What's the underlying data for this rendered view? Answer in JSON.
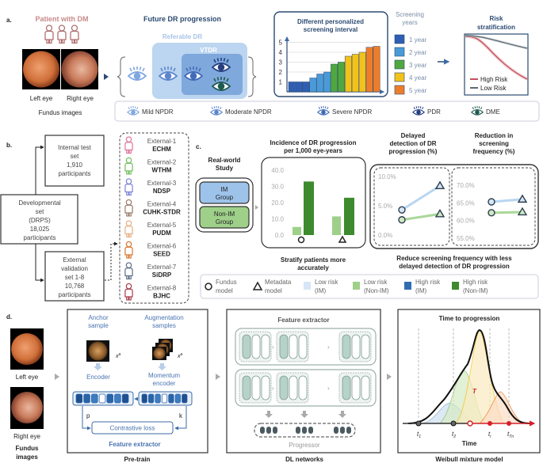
{
  "panel_a": {
    "label": "a.",
    "patient_title": "Patient with DM",
    "left_eye": "Left eye",
    "right_eye": "Right eye",
    "fundus_caption": "Fundus images",
    "progression_title": "Future DR progression",
    "referable_label": "Referable DR",
    "vtdr_label": "VTDR",
    "interval_title": [
      "Different personalized",
      "screening interval"
    ],
    "y_ticks": [
      "1",
      "2",
      "3",
      "4",
      "5"
    ],
    "screening_years_title": [
      "Screening",
      "years"
    ],
    "years": [
      {
        "label": "1 year",
        "color": "#2f5fb3"
      },
      {
        "label": "2 year",
        "color": "#4a9ad8"
      },
      {
        "label": "3 year",
        "color": "#4fa83d"
      },
      {
        "label": "4 year",
        "color": "#f2c21b"
      },
      {
        "label": "5 year",
        "color": "#ee7d2a"
      }
    ],
    "risk_title": [
      "Risk",
      "stratification"
    ],
    "risk_legend": [
      {
        "label": "High Risk",
        "color": "#c4505c"
      },
      {
        "label": "Low Risk",
        "color": "#5d6a72"
      }
    ],
    "stages": [
      {
        "label": "Mild NPDR",
        "color": "#7fa7e0",
        "icon": "eye-icon"
      },
      {
        "label": "Moderate NPDR",
        "color": "#5b86cc",
        "icon": "eye-icon"
      },
      {
        "label": "Severe NPDR",
        "color": "#3f6bb8",
        "icon": "eye-icon"
      },
      {
        "label": "PDR",
        "color": "#263f80",
        "icon": "eye-icon"
      },
      {
        "label": "DME",
        "color": "#1f5a50",
        "icon": "eye-icon"
      }
    ]
  },
  "panel_b": {
    "label": "b.",
    "internal": [
      "Internal test",
      "set",
      "1,910",
      "participants"
    ],
    "developmental": [
      "Developmental",
      "set",
      "(DRPS)",
      "18,025",
      "participants"
    ],
    "external": [
      "External",
      "validation",
      "set 1-8",
      "10,768",
      "participants"
    ],
    "sites": [
      {
        "name": "External-1",
        "code": "ECHM",
        "color": "#e0709a"
      },
      {
        "name": "External-2",
        "code": "WTHM",
        "color": "#6cbf5a"
      },
      {
        "name": "External-3",
        "code": "NDSP",
        "color": "#7b82d6"
      },
      {
        "name": "External-4",
        "code": "CUHK-STDR",
        "color": "#9a7a66"
      },
      {
        "name": "External-5",
        "code": "PUDM",
        "color": "#e9ad7e"
      },
      {
        "name": "External-6",
        "code": "SEED",
        "color": "#d9742c"
      },
      {
        "name": "External-7",
        "code": "SiDRP",
        "color": "#5b6d86"
      },
      {
        "name": "External-8",
        "code": "BJHC",
        "color": "#a83a48"
      }
    ]
  },
  "panel_c": {
    "label": "c.",
    "real_world_title": [
      "Real-world",
      "Study"
    ],
    "im_group": [
      "IM",
      "Group"
    ],
    "non_im_group": [
      "Non-IM",
      "Group"
    ],
    "incidence_title": [
      "Incidence of DR progression",
      "per 1,000 eye-years"
    ],
    "incidence_ticks": [
      "40.0",
      "30.0",
      "20.0",
      "10.0",
      "0.0"
    ],
    "delayed_title": [
      "Delayed",
      "detection of DR",
      "progression (%)"
    ],
    "delayed_ticks": [
      "10.0%",
      "5.0%",
      "0.0%"
    ],
    "reduction_title": [
      "Reduction in",
      "screening",
      "frequency (%)"
    ],
    "reduction_ticks": [
      "70.0%",
      "65.0%",
      "60.0%",
      "55.0%"
    ],
    "stratify_caption": [
      "Stratify patients more",
      "accurately"
    ],
    "reduce_caption": [
      "Reduce screening frequency with less",
      "delayed detection of DR progression"
    ],
    "legend": [
      {
        "symbol": "circle",
        "label": [
          "Fundus",
          "model"
        ]
      },
      {
        "symbol": "triangle",
        "label": [
          "Metadata",
          "model"
        ]
      },
      {
        "color": "#d6e6f6",
        "label": [
          "Low risk",
          "(IM)"
        ]
      },
      {
        "color": "#9fd08a",
        "label": [
          "Low risk",
          "(Non-IM)"
        ]
      },
      {
        "color": "#2f6db3",
        "label": [
          "High risk",
          "(IM)"
        ]
      },
      {
        "color": "#3e8a2e",
        "label": [
          "High risk",
          "(Non-IM)"
        ]
      }
    ],
    "colors": {
      "im_box": "#9dc3ea",
      "non_im_box": "#9ed08a",
      "im_line": "#b8d6f0",
      "non_im_line": "#a9d898"
    }
  },
  "panel_d": {
    "label": "d.",
    "left_eye": "Left eye",
    "right_eye": "Right eye",
    "fundus_caption": [
      "Fundus",
      "images"
    ],
    "anchor_label": [
      "Anchor",
      "sample"
    ],
    "augmentation_label": [
      "Augmentation",
      "samples"
    ],
    "x_anchor": "x",
    "x_anchor_sup": "a",
    "x_aug": "x",
    "x_aug_sup": "a",
    "encoder": "Encoder",
    "momentum_encoder": [
      "Momentum",
      "encoder"
    ],
    "p": "p",
    "k": "k",
    "contrastive_loss": "Contrastive loss",
    "feature_extractor_caption": "Feature extractor",
    "pretrain_caption": "Pre-train",
    "dl_feature_extractor": "Feature extractor",
    "progressor": "Progressor",
    "dl_caption": "DL networks",
    "time_title": "Time to progression",
    "time_axis": "Time",
    "t_symbol": "T",
    "ticks": [
      {
        "t": "t",
        "sub": "1"
      },
      {
        "t": "t",
        "sub": "2"
      },
      {
        "t": "t",
        "sub": "i"
      },
      {
        "t": "t",
        "sub": "Tn"
      }
    ],
    "weibull_caption": "Weibull mixture model"
  },
  "chart_data": [
    {
      "type": "bar",
      "title": "Different personalized screening interval",
      "yticks": [
        1,
        2,
        3,
        4,
        5
      ],
      "ylim": [
        0,
        5.3
      ],
      "values": [
        1.0,
        1.0,
        1.0,
        1.4,
        1.8,
        2.0,
        2.8,
        3.0,
        3.6,
        3.8,
        4.0,
        4.5,
        4.6
      ],
      "year_group": [
        1,
        1,
        1,
        2,
        2,
        2,
        3,
        3,
        4,
        4,
        4,
        5,
        5
      ]
    },
    {
      "type": "bar",
      "title": "Incidence of DR progression per 1,000 eye-years",
      "categories": [
        "Fundus model",
        "Metadata model"
      ],
      "ylim": [
        0,
        40
      ],
      "series": [
        {
          "name": "Low risk (Non-IM)",
          "values": [
            5.0,
            11.5
          ],
          "color": "#9fd08a"
        },
        {
          "name": "High risk (Non-IM)",
          "values": [
            33.0,
            23.0
          ],
          "color": "#3e8a2e"
        }
      ]
    },
    {
      "type": "line",
      "title": "Delayed detection of DR progression (%)",
      "categories": [
        "Fundus model",
        "Metadata model"
      ],
      "ylim": [
        0,
        10
      ],
      "series": [
        {
          "name": "IM",
          "values": [
            4.3,
            8.4
          ]
        },
        {
          "name": "Non-IM",
          "values": [
            2.6,
            3.6
          ]
        }
      ]
    },
    {
      "type": "line",
      "title": "Reduction in screening frequency (%)",
      "categories": [
        "Fundus model",
        "Metadata model"
      ],
      "ylim": [
        55,
        70
      ],
      "series": [
        {
          "name": "IM",
          "values": [
            65.3,
            66.0
          ]
        },
        {
          "name": "Non-IM",
          "values": [
            62.2,
            62.4
          ]
        }
      ]
    }
  ]
}
